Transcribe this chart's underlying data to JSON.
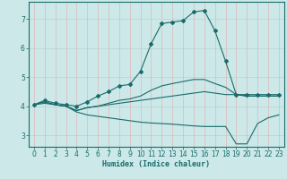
{
  "xlabel": "Humidex (Indice chaleur)",
  "xlim": [
    -0.5,
    23.5
  ],
  "ylim": [
    2.6,
    7.6
  ],
  "yticks": [
    3,
    4,
    5,
    6,
    7
  ],
  "xticks": [
    0,
    1,
    2,
    3,
    4,
    5,
    6,
    7,
    8,
    9,
    10,
    11,
    12,
    13,
    14,
    15,
    16,
    17,
    18,
    19,
    20,
    21,
    22,
    23
  ],
  "bg_color": "#cce8e8",
  "line_color": "#1a6b6b",
  "grid_color_h": "#b8d8d8",
  "grid_color_v": "#e0b8b8",
  "lines": [
    {
      "x": [
        0,
        1,
        2,
        3,
        4,
        5,
        6,
        7,
        8,
        9,
        10,
        11,
        12,
        13,
        14,
        15,
        16,
        17,
        18,
        19,
        20,
        21,
        22,
        23
      ],
      "y": [
        4.05,
        4.2,
        4.1,
        4.05,
        4.0,
        4.15,
        4.35,
        4.5,
        4.7,
        4.75,
        5.2,
        6.15,
        6.85,
        6.9,
        6.95,
        7.25,
        7.3,
        6.6,
        5.55,
        4.4,
        4.4,
        4.4,
        4.4,
        4.4
      ],
      "marker": true
    },
    {
      "x": [
        0,
        1,
        2,
        3,
        4,
        5,
        6,
        7,
        8,
        9,
        10,
        11,
        12,
        13,
        14,
        15,
        16,
        17,
        18,
        19,
        20,
        21,
        22,
        23
      ],
      "y": [
        4.05,
        4.15,
        4.05,
        4.0,
        3.85,
        3.95,
        4.0,
        4.05,
        4.1,
        4.15,
        4.2,
        4.25,
        4.3,
        4.35,
        4.4,
        4.45,
        4.5,
        4.45,
        4.4,
        4.4,
        4.35,
        4.35,
        4.35,
        4.35
      ],
      "marker": false
    },
    {
      "x": [
        0,
        1,
        2,
        3,
        4,
        5,
        6,
        7,
        8,
        9,
        10,
        11,
        12,
        13,
        14,
        15,
        16,
        17,
        18,
        19,
        20,
        21,
        22,
        23
      ],
      "y": [
        4.05,
        4.1,
        4.05,
        4.0,
        3.8,
        3.7,
        3.65,
        3.6,
        3.55,
        3.5,
        3.45,
        3.42,
        3.4,
        3.38,
        3.35,
        3.32,
        3.3,
        3.3,
        3.3,
        2.7,
        2.7,
        3.4,
        3.6,
        3.7
      ],
      "marker": false
    },
    {
      "x": [
        0,
        1,
        2,
        3,
        4,
        5,
        6,
        7,
        8,
        9,
        10,
        11,
        12,
        13,
        14,
        15,
        16,
        17,
        18,
        19,
        20,
        21,
        22,
        23
      ],
      "y": [
        4.05,
        4.15,
        4.05,
        4.0,
        3.85,
        3.95,
        4.0,
        4.1,
        4.2,
        4.25,
        4.35,
        4.55,
        4.7,
        4.78,
        4.85,
        4.92,
        4.92,
        4.78,
        4.65,
        4.4,
        4.35,
        4.35,
        4.35,
        4.35
      ],
      "marker": false
    }
  ]
}
